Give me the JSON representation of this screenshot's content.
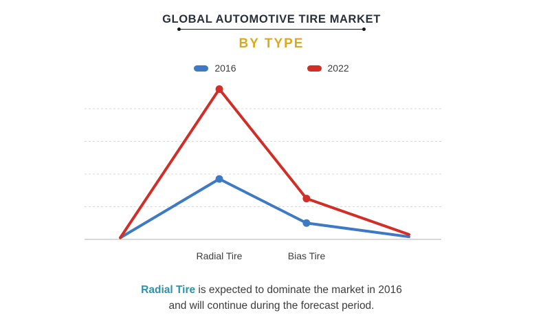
{
  "page": {
    "title": "GLOBAL AUTOMOTIVE TIRE MARKET",
    "subtitle": "BY TYPE"
  },
  "legend": [
    {
      "label": "2016",
      "color": "#3d79c4"
    },
    {
      "label": "2022",
      "color": "#d02e26"
    }
  ],
  "chart_data": {
    "type": "line",
    "title": "GLOBAL AUTOMOTIVE TIRE MARKET",
    "subtitle": "BY TYPE",
    "categories": [
      "",
      "Radial Tire",
      "Bias Tire",
      ""
    ],
    "series": [
      {
        "name": "2016",
        "color": "#3d79c4",
        "values": [
          0.05,
          1.85,
          0.5,
          0.08
        ]
      },
      {
        "name": "2022",
        "color": "#d02e26",
        "values": [
          0.05,
          4.6,
          1.25,
          0.15
        ]
      }
    ],
    "marker_indices": [
      1,
      2
    ],
    "xlabel": "",
    "ylabel": "",
    "ylim": [
      0,
      5
    ],
    "gridlines": 4,
    "grid": "horizontal-dashed",
    "legend_position": "top"
  },
  "caption": {
    "highlight": "Radial Tire",
    "line1_rest": " is expected to dominate the market in 2016",
    "line2": "and will continue during the forecast period."
  },
  "colors": {
    "title": "#2a3039",
    "subtitle": "#d9a922",
    "series_2016": "#3d79c4",
    "series_2022": "#d02e26",
    "caption_highlight": "#2b92ae",
    "text": "#3c3c3c",
    "gridline": "#d8d8d8",
    "baseline": "#cccccc"
  }
}
